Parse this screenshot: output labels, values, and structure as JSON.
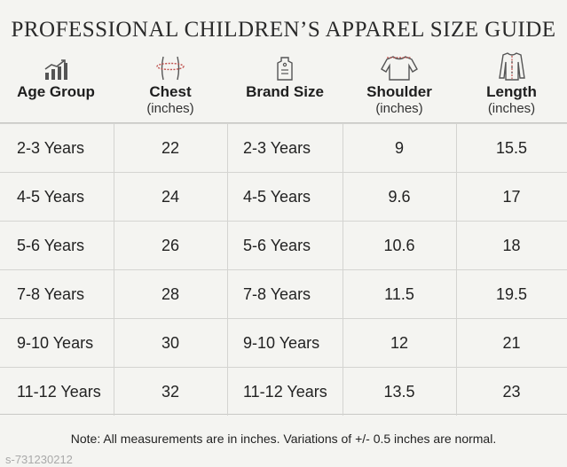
{
  "title": "PROFESSIONAL CHILDREN’S APPAREL SIZE GUIDE",
  "columns": [
    {
      "label": "Age Group",
      "unit": "",
      "icon": "growth-chart-icon"
    },
    {
      "label": "Chest",
      "unit": "(inches)",
      "icon": "chest-measure-icon"
    },
    {
      "label": "Brand Size",
      "unit": "",
      "icon": "size-tag-icon"
    },
    {
      "label": "Shoulder",
      "unit": "(inches)",
      "icon": "shirt-shoulder-icon"
    },
    {
      "label": "Length",
      "unit": "(inches)",
      "icon": "shirt-length-icon"
    }
  ],
  "rows": [
    [
      "2-3 Years",
      "22",
      "2-3 Years",
      "9",
      "15.5"
    ],
    [
      "4-5 Years",
      "24",
      "4-5 Years",
      "9.6",
      "17"
    ],
    [
      "5-6 Years",
      "26",
      "5-6 Years",
      "10.6",
      "18"
    ],
    [
      "7-8 Years",
      "28",
      "7-8 Years",
      "11.5",
      "19.5"
    ],
    [
      "9-10 Years",
      "30",
      "9-10 Years",
      "12",
      "21"
    ],
    [
      "11-12 Years",
      "32",
      "11-12 Years",
      "13.5",
      "23"
    ]
  ],
  "note": "Note: All measurements are in inches. Variations of +/- 0.5 inches are normal.",
  "watermark": "s-731230212",
  "colors": {
    "background": "#f4f4f1",
    "text": "#1e1e1e",
    "grid": "#d4d4d1",
    "accent": "#c0504d"
  }
}
